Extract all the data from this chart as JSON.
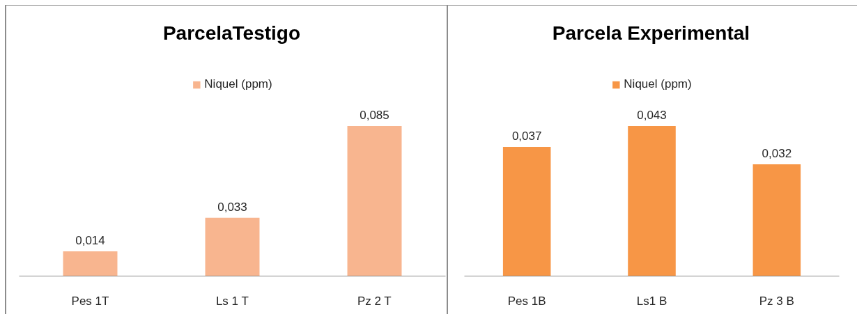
{
  "chart_data": [
    {
      "type": "bar",
      "title": "ParcelaTestigo",
      "categories": [
        "Pes 1T",
        "Ls 1 T",
        "Pz 2 T"
      ],
      "legend": "top",
      "series": [
        {
          "name": "Niquel (ppm)",
          "color": "#f8b58f",
          "values": [
            0.014,
            0.033,
            0.085
          ],
          "value_labels": [
            "0,014",
            "0,033",
            "0,085"
          ]
        }
      ]
    },
    {
      "type": "bar",
      "title": "Parcela Experimental",
      "categories": [
        "Pes 1B",
        "Ls1 B",
        "Pz 3 B"
      ],
      "legend": "top",
      "series": [
        {
          "name": "Niquel (ppm)",
          "color": "#f79646",
          "values": [
            0.037,
            0.043,
            0.032
          ],
          "value_labels": [
            "0,037",
            "0,043",
            "0,032"
          ]
        }
      ]
    }
  ]
}
